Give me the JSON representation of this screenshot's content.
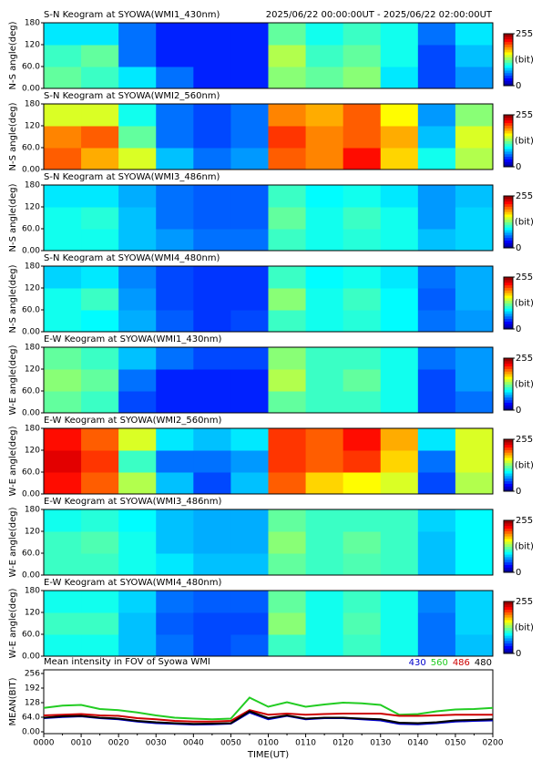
{
  "chart_data": [
    {
      "type": "heatmap",
      "title": "S-N Keogram at SYOWA(WMI1_430nm)",
      "subtitle": "2025/06/22 00:00:00UT - 2025/06/22 02:00:00UT",
      "ylabel": "N-S angle(deg)",
      "ylim": [
        0,
        180
      ],
      "yticks": [
        {
          "value": 0,
          "label": "0.00"
        },
        {
          "value": 60,
          "label": "60.0"
        },
        120,
        180
      ],
      "zlim": [
        0,
        255
      ],
      "zticks": [
        0,
        255
      ],
      "zlabel": "(bit)",
      "values": [
        [
          120,
          110,
          90,
          60,
          40,
          40,
          130,
          120,
          130,
          90,
          50,
          70
        ],
        [
          110,
          120,
          60,
          40,
          40,
          40,
          140,
          110,
          120,
          100,
          50,
          80
        ],
        [
          90,
          90,
          60,
          40,
          40,
          40,
          120,
          100,
          110,
          100,
          60,
          90
        ]
      ]
    },
    {
      "type": "heatmap",
      "title": "S-N Keogram at SYOWA(WMI2_560nm)",
      "ylabel": "N-S angle(deg)",
      "ylim": [
        0,
        180
      ],
      "yticks": [
        {
          "value": 0,
          "label": "0.00"
        },
        {
          "value": 60,
          "label": "60.0"
        },
        120,
        180
      ],
      "zlim": [
        0,
        255
      ],
      "zticks": [
        0,
        255
      ],
      "zlabel": "(bit)",
      "values": [
        [
          200,
          180,
          150,
          80,
          60,
          70,
          200,
          190,
          220,
          170,
          100,
          140
        ],
        [
          190,
          200,
          120,
          60,
          50,
          60,
          210,
          190,
          200,
          180,
          80,
          150
        ],
        [
          150,
          150,
          100,
          60,
          50,
          60,
          190,
          180,
          200,
          160,
          70,
          130
        ]
      ]
    },
    {
      "type": "heatmap",
      "title": "S-N Keogram at SYOWA(WMI3_486nm)",
      "ylabel": "N-S angle(deg)",
      "ylim": [
        0,
        180
      ],
      "yticks": [
        {
          "value": 0,
          "label": "0.00"
        },
        {
          "value": 60,
          "label": "60.0"
        },
        120,
        180
      ],
      "zlim": [
        0,
        255
      ],
      "zticks": [
        0,
        255
      ],
      "zlabel": "(bit)",
      "values": [
        [
          100,
          100,
          80,
          70,
          60,
          60,
          110,
          100,
          105,
          100,
          80,
          85
        ],
        [
          100,
          105,
          80,
          60,
          55,
          55,
          120,
          100,
          110,
          100,
          70,
          85
        ],
        [
          90,
          90,
          75,
          60,
          55,
          55,
          110,
          95,
          100,
          90,
          70,
          80
        ]
      ]
    },
    {
      "type": "heatmap",
      "title": "S-N Keogram at SYOWA(WMI4_480nm)",
      "ylabel": "N-S angle(deg)",
      "ylim": [
        0,
        180
      ],
      "yticks": [
        {
          "value": 0,
          "label": "0.00"
        },
        {
          "value": 60,
          "label": "60.0"
        },
        120,
        180
      ],
      "zlim": [
        0,
        255
      ],
      "zticks": [
        0,
        255
      ],
      "zlabel": "(bit)",
      "values": [
        [
          100,
          95,
          75,
          55,
          45,
          50,
          110,
          100,
          105,
          95,
          60,
          70
        ],
        [
          100,
          110,
          70,
          50,
          45,
          45,
          130,
          100,
          110,
          95,
          55,
          75
        ],
        [
          85,
          90,
          65,
          50,
          45,
          45,
          110,
          95,
          100,
          90,
          60,
          75
        ]
      ]
    },
    {
      "type": "heatmap",
      "title": "E-W Keogram at SYOWA(WMI1_430nm)",
      "ylabel": "W-E angle(deg)",
      "ylim": [
        0,
        180
      ],
      "yticks": [
        {
          "value": 0,
          "label": "0.00"
        },
        {
          "value": 60,
          "label": "60.0"
        },
        120,
        180
      ],
      "zlim": [
        0,
        255
      ],
      "zticks": [
        0,
        255
      ],
      "zlabel": "(bit)",
      "values": [
        [
          120,
          110,
          50,
          40,
          40,
          40,
          120,
          110,
          110,
          100,
          50,
          60
        ],
        [
          130,
          120,
          60,
          40,
          40,
          40,
          140,
          110,
          120,
          100,
          50,
          70
        ],
        [
          120,
          110,
          80,
          60,
          50,
          50,
          130,
          110,
          110,
          100,
          60,
          70
        ]
      ]
    },
    {
      "type": "heatmap",
      "title": "E-W Keogram at SYOWA(WMI2_560nm)",
      "ylabel": "W-E angle(deg)",
      "ylim": [
        0,
        180
      ],
      "yticks": [
        {
          "value": 0,
          "label": "0.00"
        },
        {
          "value": 60,
          "label": "60.0"
        },
        120,
        180
      ],
      "zlim": [
        0,
        255
      ],
      "zticks": [
        0,
        255
      ],
      "zlabel": "(bit)",
      "values": [
        [
          220,
          200,
          140,
          80,
          50,
          80,
          200,
          170,
          160,
          150,
          50,
          140
        ],
        [
          230,
          210,
          110,
          60,
          60,
          70,
          210,
          200,
          210,
          170,
          60,
          150
        ],
        [
          220,
          200,
          150,
          90,
          80,
          90,
          210,
          200,
          220,
          180,
          90,
          150
        ]
      ]
    },
    {
      "type": "heatmap",
      "title": "E-W Keogram at SYOWA(WMI3_486nm)",
      "ylabel": "W-E angle(deg)",
      "ylim": [
        0,
        180
      ],
      "yticks": [
        {
          "value": 0,
          "label": "0.00"
        },
        {
          "value": 60,
          "label": "60.0"
        },
        120,
        180
      ],
      "zlim": [
        0,
        255
      ],
      "zticks": [
        0,
        255
      ],
      "zlabel": "(bit)",
      "values": [
        [
          110,
          110,
          100,
          90,
          80,
          80,
          120,
          110,
          115,
          110,
          80,
          95
        ],
        [
          110,
          115,
          100,
          80,
          75,
          75,
          130,
          110,
          120,
          110,
          80,
          95
        ],
        [
          100,
          105,
          95,
          80,
          75,
          75,
          120,
          110,
          110,
          110,
          85,
          95
        ]
      ]
    },
    {
      "type": "heatmap",
      "title": "E-W Keogram at SYOWA(WMI4_480nm)",
      "ylabel": "W-E angle(deg)",
      "ylim": [
        0,
        180
      ],
      "yticks": [
        {
          "value": 0,
          "label": "0.00"
        },
        {
          "value": 60,
          "label": "60.0"
        },
        120,
        180
      ],
      "zlim": [
        0,
        255
      ],
      "zticks": [
        0,
        255
      ],
      "zlabel": "(bit)",
      "values": [
        [
          100,
          100,
          80,
          60,
          50,
          55,
          110,
          100,
          110,
          100,
          60,
          80
        ],
        [
          110,
          110,
          80,
          55,
          50,
          50,
          130,
          100,
          115,
          100,
          60,
          85
        ],
        [
          100,
          100,
          85,
          60,
          55,
          55,
          120,
          100,
          110,
          100,
          65,
          85
        ]
      ]
    },
    {
      "type": "line",
      "title": "Mean intensity in FOV of Syowa WMI",
      "ylabel": "MEAN(BIT)",
      "xlabel": "TIME(UT)",
      "ylim": [
        -8,
        272
      ],
      "yticks": [
        {
          "value": 0,
          "label": "0.00"
        },
        {
          "value": 64,
          "label": "64.0"
        },
        128,
        192,
        256
      ],
      "categories": [
        "0000",
        null,
        "0010",
        null,
        "0020",
        null,
        "0030",
        null,
        "0040",
        null,
        "0050",
        null,
        "0100",
        null,
        "0110",
        null,
        "0120",
        null,
        "0130",
        null,
        "0140",
        null,
        "0150",
        null,
        "0200"
      ],
      "series": [
        {
          "name": "430",
          "color": "#0000cc",
          "values": [
            60,
            65,
            68,
            60,
            55,
            45,
            38,
            35,
            32,
            33,
            36,
            85,
            55,
            70,
            55,
            60,
            60,
            55,
            50,
            35,
            33,
            38,
            45,
            48,
            50
          ]
        },
        {
          "name": "560",
          "color": "#22cc22",
          "values": [
            105,
            115,
            118,
            100,
            95,
            85,
            72,
            62,
            58,
            55,
            58,
            150,
            110,
            130,
            110,
            120,
            128,
            125,
            118,
            75,
            78,
            90,
            98,
            100,
            105
          ]
        },
        {
          "name": "486",
          "color": "#cc0000",
          "values": [
            72,
            75,
            78,
            72,
            70,
            60,
            55,
            48,
            45,
            45,
            48,
            95,
            75,
            80,
            75,
            78,
            80,
            80,
            80,
            70,
            70,
            72,
            75,
            75,
            75
          ]
        },
        {
          "name": "480",
          "color": "#000000",
          "values": [
            62,
            68,
            70,
            62,
            58,
            48,
            42,
            38,
            35,
            36,
            38,
            90,
            60,
            72,
            58,
            62,
            62,
            58,
            55,
            40,
            38,
            42,
            50,
            52,
            55
          ]
        }
      ]
    }
  ]
}
